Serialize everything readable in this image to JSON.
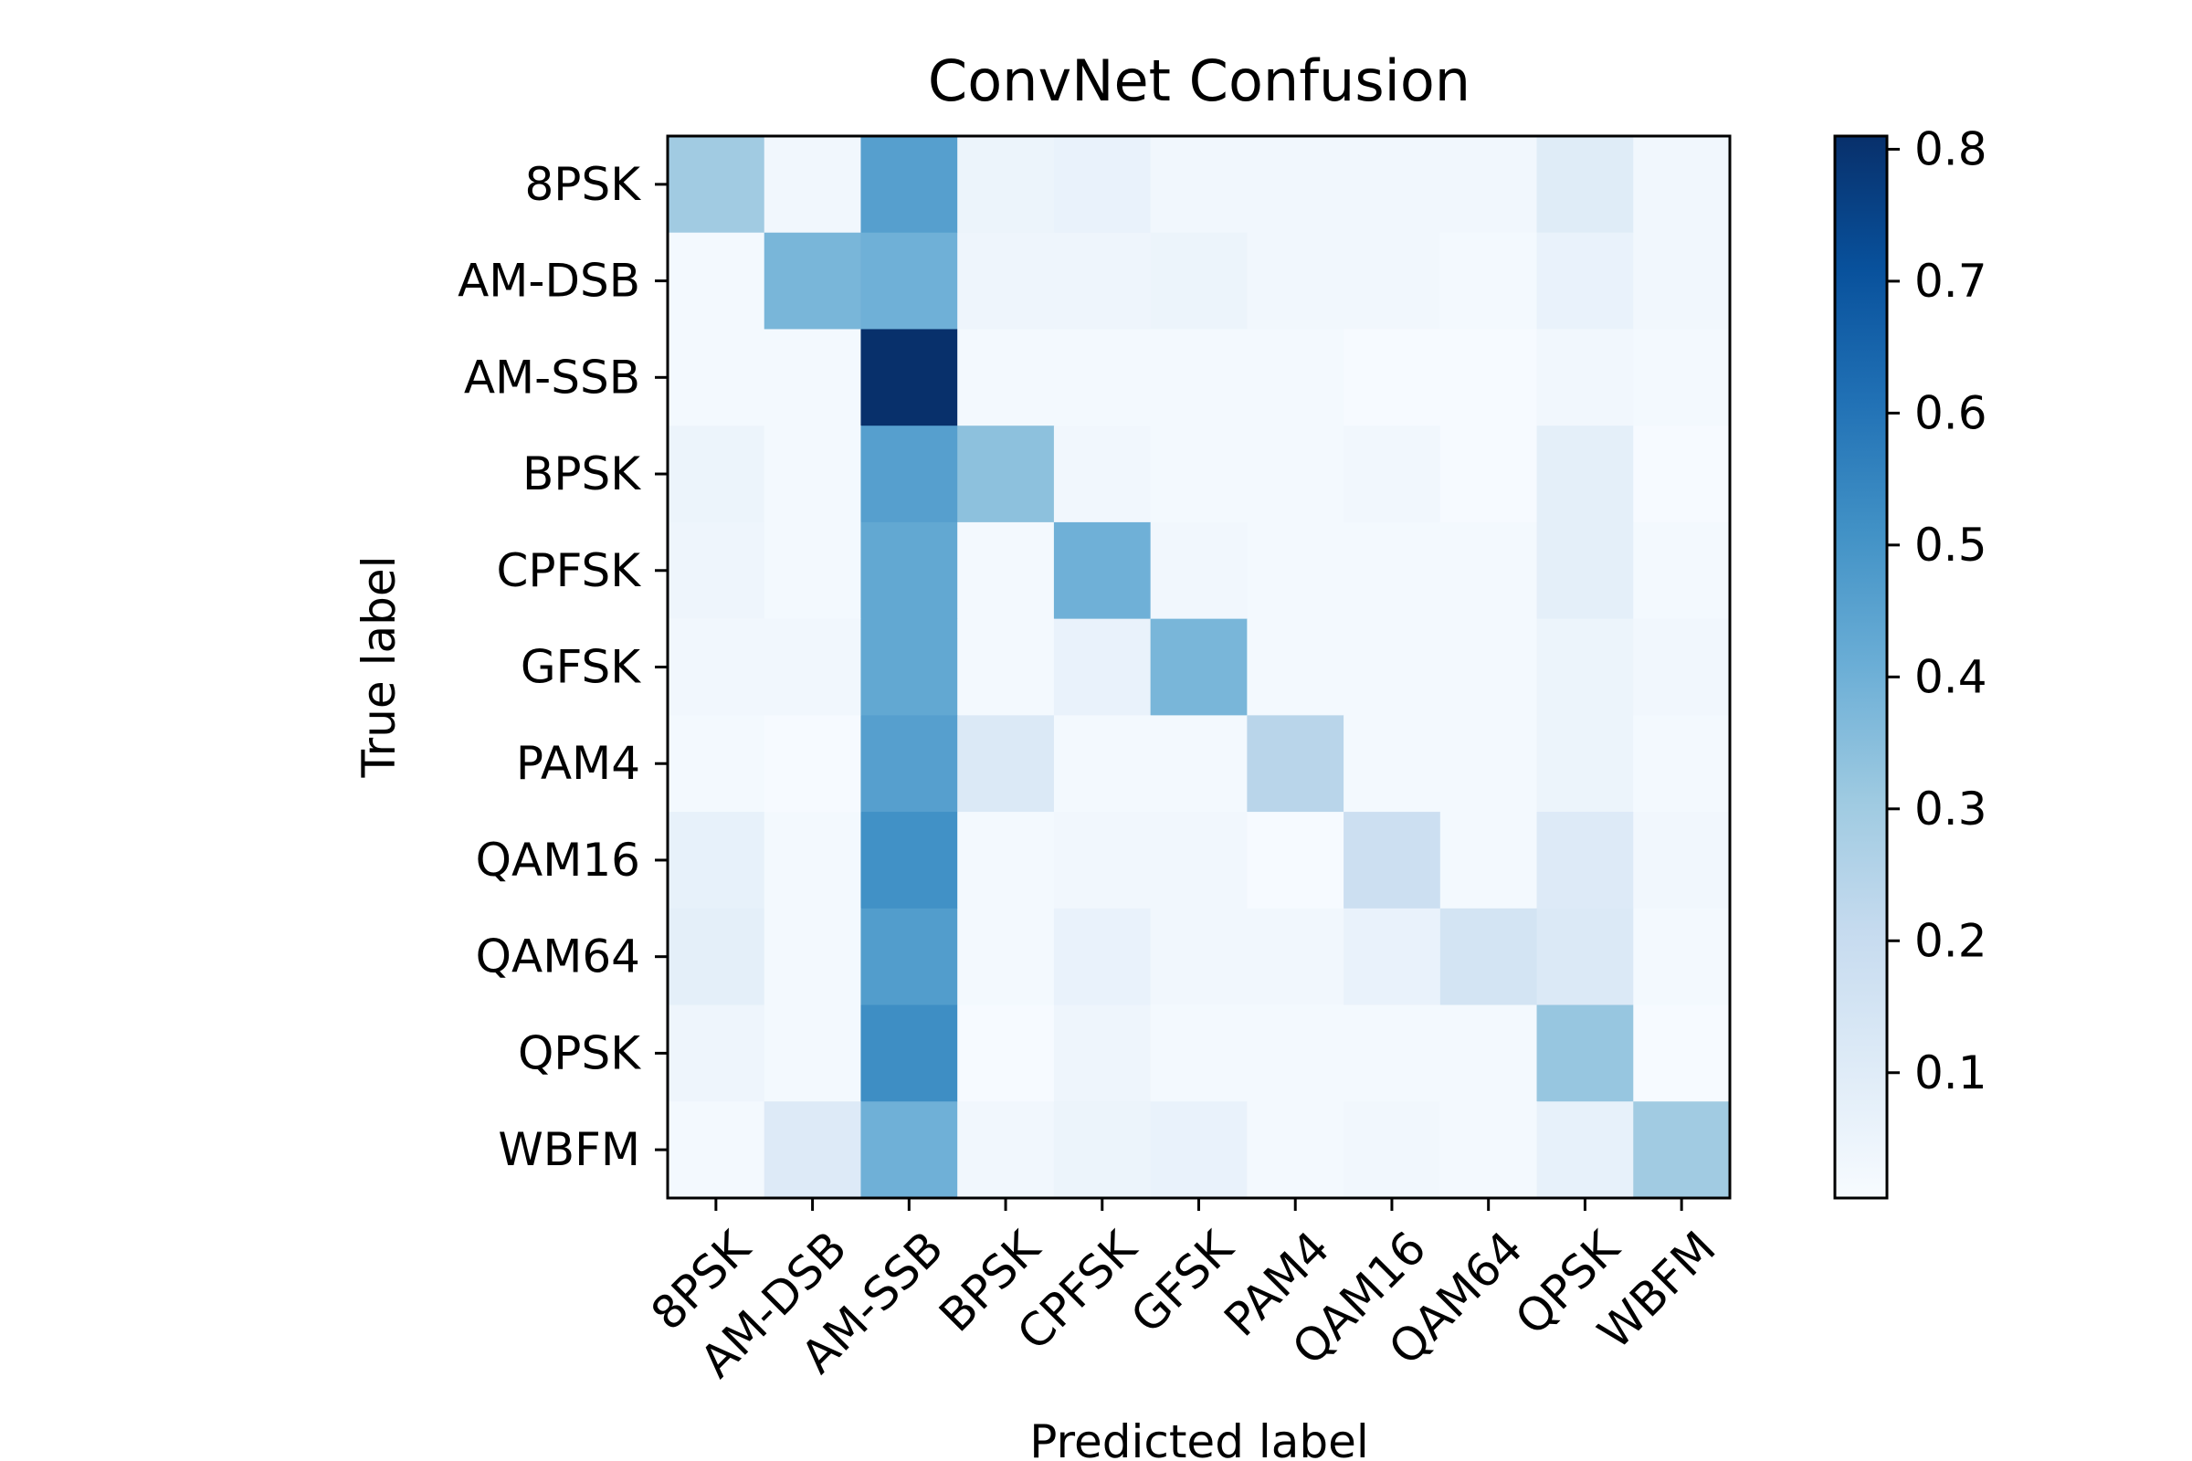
{
  "chart_data": {
    "type": "heatmap",
    "title": "ConvNet Confusion",
    "xlabel": "Predicted label",
    "ylabel": "True label",
    "x_categories": [
      "8PSK",
      "AM-DSB",
      "AM-SSB",
      "BPSK",
      "CPFSK",
      "GFSK",
      "PAM4",
      "QAM16",
      "QAM64",
      "QPSK",
      "WBFM"
    ],
    "y_categories": [
      "8PSK",
      "AM-DSB",
      "AM-SSB",
      "BPSK",
      "CPFSK",
      "GFSK",
      "PAM4",
      "QAM16",
      "QAM64",
      "QPSK",
      "WBFM"
    ],
    "values": [
      [
        0.3,
        0.03,
        0.46,
        0.05,
        0.06,
        0.03,
        0.03,
        0.03,
        0.03,
        0.1,
        0.03
      ],
      [
        0.02,
        0.38,
        0.4,
        0.04,
        0.04,
        0.05,
        0.03,
        0.03,
        0.02,
        0.06,
        0.03
      ],
      [
        0.02,
        0.02,
        0.81,
        0.02,
        0.02,
        0.02,
        0.02,
        0.01,
        0.01,
        0.03,
        0.02
      ],
      [
        0.05,
        0.02,
        0.46,
        0.34,
        0.03,
        0.02,
        0.02,
        0.03,
        0.01,
        0.08,
        0.01
      ],
      [
        0.04,
        0.02,
        0.43,
        0.02,
        0.4,
        0.03,
        0.02,
        0.02,
        0.02,
        0.08,
        0.02
      ],
      [
        0.03,
        0.03,
        0.43,
        0.02,
        0.06,
        0.38,
        0.02,
        0.02,
        0.02,
        0.05,
        0.03
      ],
      [
        0.02,
        0.01,
        0.46,
        0.12,
        0.02,
        0.02,
        0.24,
        0.02,
        0.02,
        0.05,
        0.02
      ],
      [
        0.07,
        0.02,
        0.51,
        0.02,
        0.03,
        0.03,
        0.01,
        0.18,
        0.02,
        0.11,
        0.03
      ],
      [
        0.08,
        0.02,
        0.47,
        0.02,
        0.06,
        0.03,
        0.03,
        0.06,
        0.15,
        0.12,
        0.02
      ],
      [
        0.04,
        0.02,
        0.52,
        0.01,
        0.04,
        0.02,
        0.02,
        0.02,
        0.02,
        0.32,
        0.01
      ],
      [
        0.02,
        0.11,
        0.4,
        0.03,
        0.05,
        0.06,
        0.02,
        0.03,
        0.02,
        0.07,
        0.3
      ]
    ],
    "colorbar": {
      "min": 0.005,
      "max": 0.81,
      "ticks": [
        0.1,
        0.2,
        0.3,
        0.4,
        0.5,
        0.6,
        0.7,
        0.8
      ],
      "tick_labels": [
        "0.1",
        "0.2",
        "0.3",
        "0.4",
        "0.5",
        "0.6",
        "0.7",
        "0.8"
      ]
    },
    "colormap": "Blues",
    "colormap_stops": [
      "#f7fbff",
      "#deebf7",
      "#c6dbef",
      "#9ecae1",
      "#6baed6",
      "#4292c6",
      "#2171b5",
      "#08519c",
      "#08306b"
    ],
    "grid": false
  }
}
